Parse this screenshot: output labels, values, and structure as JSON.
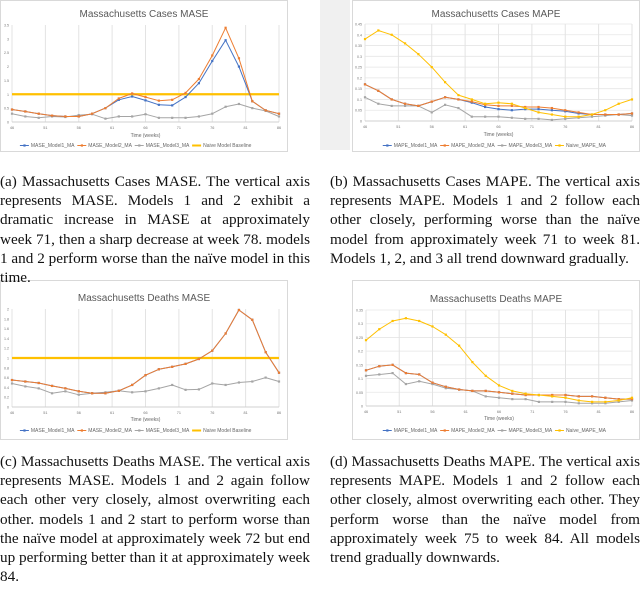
{
  "chart_data": [
    {
      "id": "a",
      "type": "line",
      "title": "Massachusetts Cases MASE",
      "xlabel": "Time (weeks)",
      "ylabel": "",
      "xlim": [
        46,
        86
      ],
      "ylim": [
        0,
        3.5
      ],
      "xticks": [
        46,
        51,
        56,
        61,
        66,
        71,
        76,
        81,
        86
      ],
      "yticks": [
        0,
        0.5,
        1,
        1.5,
        2,
        2.5,
        3,
        3.5
      ],
      "grid": "vertical",
      "legend": "bottom",
      "x": [
        46,
        48,
        50,
        52,
        54,
        56,
        58,
        60,
        62,
        64,
        66,
        68,
        70,
        72,
        74,
        76,
        78,
        80,
        82,
        84,
        86
      ],
      "series": [
        {
          "name": "MASE_Model1_MA",
          "color": "#4472c4",
          "values": [
            0.45,
            0.38,
            0.3,
            0.23,
            0.2,
            0.2,
            0.3,
            0.5,
            0.8,
            0.92,
            0.78,
            0.62,
            0.6,
            0.9,
            1.4,
            2.2,
            2.95,
            2.0,
            0.75,
            0.42,
            0.3
          ]
        },
        {
          "name": "MASE_Model2_MA",
          "color": "#ed7d31",
          "values": [
            0.45,
            0.38,
            0.3,
            0.23,
            0.2,
            0.2,
            0.3,
            0.5,
            0.85,
            1.03,
            0.9,
            0.77,
            0.8,
            1.05,
            1.55,
            2.4,
            3.4,
            2.3,
            0.75,
            0.42,
            0.3
          ]
        },
        {
          "name": "MASE_Model3_MA",
          "color": "#a5a5a5",
          "values": [
            0.3,
            0.2,
            0.15,
            0.2,
            0.18,
            0.25,
            0.28,
            0.12,
            0.2,
            0.2,
            0.28,
            0.15,
            0.15,
            0.15,
            0.2,
            0.3,
            0.55,
            0.65,
            0.5,
            0.4,
            0.2
          ]
        },
        {
          "name": "Naive Model Baseline",
          "color": "#ffc000",
          "baseline": true,
          "values": [
            1,
            1,
            1,
            1,
            1,
            1,
            1,
            1,
            1,
            1,
            1,
            1,
            1,
            1,
            1,
            1,
            1,
            1,
            1,
            1,
            1
          ]
        }
      ]
    },
    {
      "id": "b",
      "type": "line",
      "title": "Massachusetts Cases MAPE",
      "xlabel": "Time (weeks)",
      "ylabel": "",
      "xlim": [
        46,
        86
      ],
      "ylim": [
        0,
        0.45
      ],
      "xticks": [
        46,
        51,
        56,
        61,
        66,
        71,
        76,
        81,
        86
      ],
      "yticks": [
        0,
        0.05,
        0.1,
        0.15,
        0.2,
        0.25,
        0.3,
        0.35,
        0.4,
        0.45
      ],
      "grid": "both",
      "legend": "bottom",
      "x": [
        46,
        48,
        50,
        52,
        54,
        56,
        58,
        60,
        62,
        64,
        66,
        68,
        70,
        72,
        74,
        76,
        78,
        80,
        82,
        84,
        86
      ],
      "series": [
        {
          "name": "MAPE_Model1_MA",
          "color": "#4472c4",
          "values": [
            0.17,
            0.14,
            0.1,
            0.08,
            0.07,
            0.09,
            0.11,
            0.1,
            0.085,
            0.065,
            0.055,
            0.05,
            0.055,
            0.055,
            0.05,
            0.045,
            0.035,
            0.03,
            0.03,
            0.03,
            0.035
          ]
        },
        {
          "name": "MAPE_Model2_MA",
          "color": "#ed7d31",
          "values": [
            0.17,
            0.14,
            0.1,
            0.08,
            0.07,
            0.09,
            0.11,
            0.1,
            0.09,
            0.075,
            0.07,
            0.07,
            0.065,
            0.065,
            0.06,
            0.05,
            0.04,
            0.03,
            0.03,
            0.03,
            0.035
          ]
        },
        {
          "name": "MAPE_Model3_MA",
          "color": "#a5a5a5",
          "values": [
            0.11,
            0.08,
            0.07,
            0.07,
            0.07,
            0.04,
            0.075,
            0.06,
            0.02,
            0.02,
            0.02,
            0.015,
            0.01,
            0.01,
            0.005,
            0.01,
            0.015,
            0.02,
            0.025,
            0.03,
            0.025
          ]
        },
        {
          "name": "Naive_MAPE_MA",
          "color": "#ffc000",
          "values": [
            0.38,
            0.42,
            0.4,
            0.36,
            0.31,
            0.25,
            0.18,
            0.12,
            0.1,
            0.08,
            0.085,
            0.08,
            0.06,
            0.04,
            0.03,
            0.02,
            0.02,
            0.03,
            0.05,
            0.08,
            0.1
          ]
        }
      ]
    },
    {
      "id": "c",
      "type": "line",
      "title": "Massachusetts Deaths MASE",
      "xlabel": "Time (weeks)",
      "ylabel": "",
      "xlim": [
        46,
        86
      ],
      "ylim": [
        0,
        2
      ],
      "xticks": [
        46,
        51,
        56,
        61,
        66,
        71,
        76,
        81,
        86
      ],
      "yticks": [
        0,
        0.2,
        0.4,
        0.6,
        0.8,
        1,
        1.2,
        1.4,
        1.6,
        1.8,
        2
      ],
      "grid": "vertical",
      "legend": "bottom",
      "x": [
        46,
        48,
        50,
        52,
        54,
        56,
        58,
        60,
        62,
        64,
        66,
        68,
        70,
        72,
        74,
        76,
        78,
        80,
        82,
        84,
        86
      ],
      "series": [
        {
          "name": "MASE_Model1_MA",
          "color": "#4472c4",
          "values": [
            0.55,
            0.52,
            0.49,
            0.43,
            0.38,
            0.32,
            0.28,
            0.28,
            0.33,
            0.45,
            0.65,
            0.77,
            0.82,
            0.88,
            0.98,
            1.15,
            1.5,
            1.98,
            1.78,
            1.12,
            0.7
          ]
        },
        {
          "name": "MASE_Model2_MA",
          "color": "#ed7d31",
          "values": [
            0.55,
            0.52,
            0.49,
            0.43,
            0.38,
            0.32,
            0.28,
            0.28,
            0.33,
            0.45,
            0.65,
            0.77,
            0.82,
            0.88,
            0.98,
            1.15,
            1.5,
            1.98,
            1.78,
            1.12,
            0.7
          ]
        },
        {
          "name": "MASE_Model3_MA",
          "color": "#a5a5a5",
          "values": [
            0.48,
            0.42,
            0.38,
            0.28,
            0.32,
            0.25,
            0.28,
            0.3,
            0.33,
            0.3,
            0.32,
            0.38,
            0.45,
            0.35,
            0.36,
            0.48,
            0.45,
            0.5,
            0.52,
            0.6,
            0.52
          ]
        },
        {
          "name": "Naive Model Baseline",
          "color": "#ffc000",
          "baseline": true,
          "values": [
            1,
            1,
            1,
            1,
            1,
            1,
            1,
            1,
            1,
            1,
            1,
            1,
            1,
            1,
            1,
            1,
            1,
            1,
            1,
            1,
            1
          ]
        }
      ]
    },
    {
      "id": "d",
      "type": "line",
      "title": "Massachusetts Deaths MAPE",
      "xlabel": "Time (weeks)",
      "ylabel": "",
      "xlim": [
        46,
        86
      ],
      "ylim": [
        0,
        0.35
      ],
      "xticks": [
        46,
        51,
        56,
        61,
        66,
        71,
        76,
        81,
        86
      ],
      "yticks": [
        0,
        0.05,
        0.1,
        0.15,
        0.2,
        0.25,
        0.3,
        0.35
      ],
      "grid": "both",
      "legend": "bottom",
      "x": [
        46,
        48,
        50,
        52,
        54,
        56,
        58,
        60,
        62,
        64,
        66,
        68,
        70,
        72,
        74,
        76,
        78,
        80,
        82,
        84,
        86
      ],
      "series": [
        {
          "name": "MAPE_Model1_MA",
          "color": "#4472c4",
          "values": [
            0.13,
            0.145,
            0.15,
            0.12,
            0.115,
            0.085,
            0.07,
            0.06,
            0.055,
            0.055,
            0.05,
            0.045,
            0.04,
            0.04,
            0.04,
            0.04,
            0.035,
            0.035,
            0.03,
            0.025,
            0.025
          ]
        },
        {
          "name": "MAPE_Model2_MA",
          "color": "#ed7d31",
          "values": [
            0.13,
            0.145,
            0.15,
            0.12,
            0.115,
            0.085,
            0.07,
            0.06,
            0.055,
            0.055,
            0.05,
            0.045,
            0.04,
            0.04,
            0.04,
            0.04,
            0.035,
            0.035,
            0.03,
            0.025,
            0.025
          ]
        },
        {
          "name": "MAPE_Model3_MA",
          "color": "#a5a5a5",
          "values": [
            0.11,
            0.115,
            0.12,
            0.08,
            0.09,
            0.08,
            0.065,
            0.06,
            0.055,
            0.035,
            0.03,
            0.025,
            0.025,
            0.015,
            0.015,
            0.015,
            0.01,
            0.01,
            0.01,
            0.015,
            0.02
          ]
        },
        {
          "name": "Naive_MAPE_MA",
          "color": "#ffc000",
          "values": [
            0.24,
            0.28,
            0.31,
            0.32,
            0.31,
            0.29,
            0.26,
            0.22,
            0.16,
            0.11,
            0.075,
            0.055,
            0.045,
            0.04,
            0.035,
            0.03,
            0.02,
            0.015,
            0.015,
            0.02,
            0.03
          ]
        }
      ]
    }
  ],
  "captions": {
    "a": "(a) Massachusetts Cases MASE. The vertical axis represents MASE. Models 1 and 2 exhibit a dramatic increase in MASE at approximately week 71, then a sharp decrease at week 78. models 1 and 2 perform worse than the naïve model in this time.",
    "b": "(b) Massachusetts Cases MAPE. The vertical axis represents MAPE. Models 1 and 2 follow each other closely, performing worse than the naïve model from approximately week 71 to week 81. Models 1, 2, and 3 all trend downward gradually.",
    "c": "(c) Massachusetts Deaths MASE. The vertical axis represents MASE. Models 1 and 2 again follow each other very closely, almost overwriting each other. models 1 and 2 start to perform worse than the naïve model at approximately week 72 but end up performing better than it at approximately week 84.",
    "d": "(d) Massachusetts Deaths MAPE. The vertical axis represents MAPE. Models 1 and 2 follow each other closely, almost overwriting each other. They perform worse than the naïve model from approximately week 75 to week 84. All models trend gradually downwards."
  }
}
